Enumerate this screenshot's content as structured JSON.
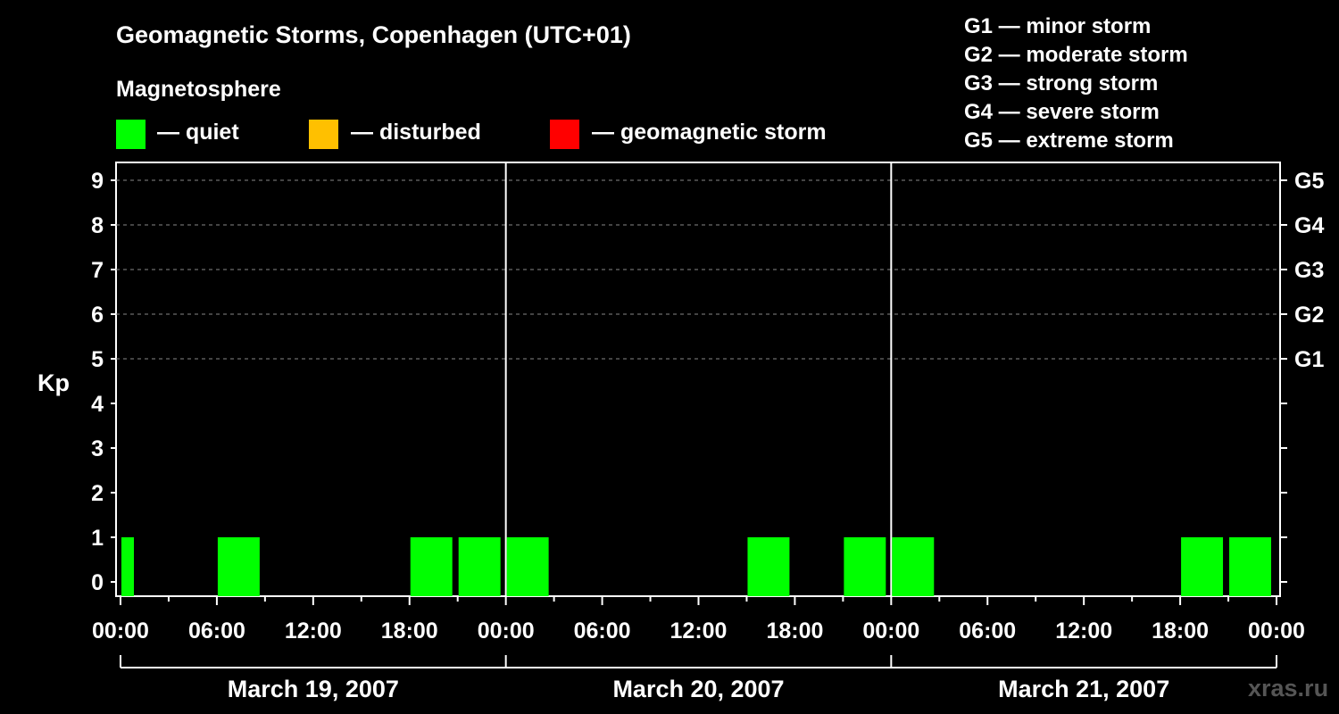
{
  "title": "Geomagnetic Storms, Copenhagen (UTC+01)",
  "magnetosphere_label": "Magnetosphere",
  "legend": [
    {
      "label": "— quiet",
      "color": "#00ff00"
    },
    {
      "label": "— disturbed",
      "color": "#ffc000"
    },
    {
      "label": "— geomagnetic storm",
      "color": "#ff0000"
    }
  ],
  "storm_levels": [
    "G1 — minor storm",
    "G2 — moderate storm",
    "G3 — strong storm",
    "G4 — severe storm",
    "G5 — extreme storm"
  ],
  "watermark": "xras.ru",
  "chart_data": {
    "type": "bar",
    "ylabel": "Kp",
    "ylim": [
      0,
      9
    ],
    "y_ticks": [
      "0",
      "1",
      "2",
      "3",
      "4",
      "5",
      "6",
      "7",
      "8",
      "9"
    ],
    "right_ticks": [
      {
        "kp": 5,
        "label": "G1"
      },
      {
        "kp": 6,
        "label": "G2"
      },
      {
        "kp": 7,
        "label": "G3"
      },
      {
        "kp": 8,
        "label": "G4"
      },
      {
        "kp": 9,
        "label": "G5"
      }
    ],
    "x_ticks": [
      "00:00",
      "06:00",
      "12:00",
      "18:00",
      "00:00",
      "06:00",
      "12:00",
      "18:00",
      "00:00",
      "06:00",
      "12:00",
      "18:00",
      "00:00"
    ],
    "dates": [
      "March 19, 2007",
      "March 20, 2007",
      "March 21, 2007"
    ],
    "grid": "dashed horizontal lines at Kp 5–9",
    "interval_hours": 3,
    "bars": [
      {
        "start_hour": 0,
        "kp": 1,
        "status": "quiet"
      },
      {
        "start_hour": 6,
        "kp": 1,
        "status": "quiet"
      },
      {
        "start_hour": 18,
        "kp": 1,
        "status": "quiet"
      },
      {
        "start_hour": 21,
        "kp": 1,
        "status": "quiet"
      },
      {
        "start_hour": 24,
        "kp": 1,
        "status": "quiet"
      },
      {
        "start_hour": 39,
        "kp": 1,
        "status": "quiet"
      },
      {
        "start_hour": 45,
        "kp": 1,
        "status": "quiet"
      },
      {
        "start_hour": 48,
        "kp": 1,
        "status": "quiet"
      },
      {
        "start_hour": 66,
        "kp": 1,
        "status": "quiet"
      },
      {
        "start_hour": 69,
        "kp": 1,
        "status": "quiet"
      }
    ]
  }
}
